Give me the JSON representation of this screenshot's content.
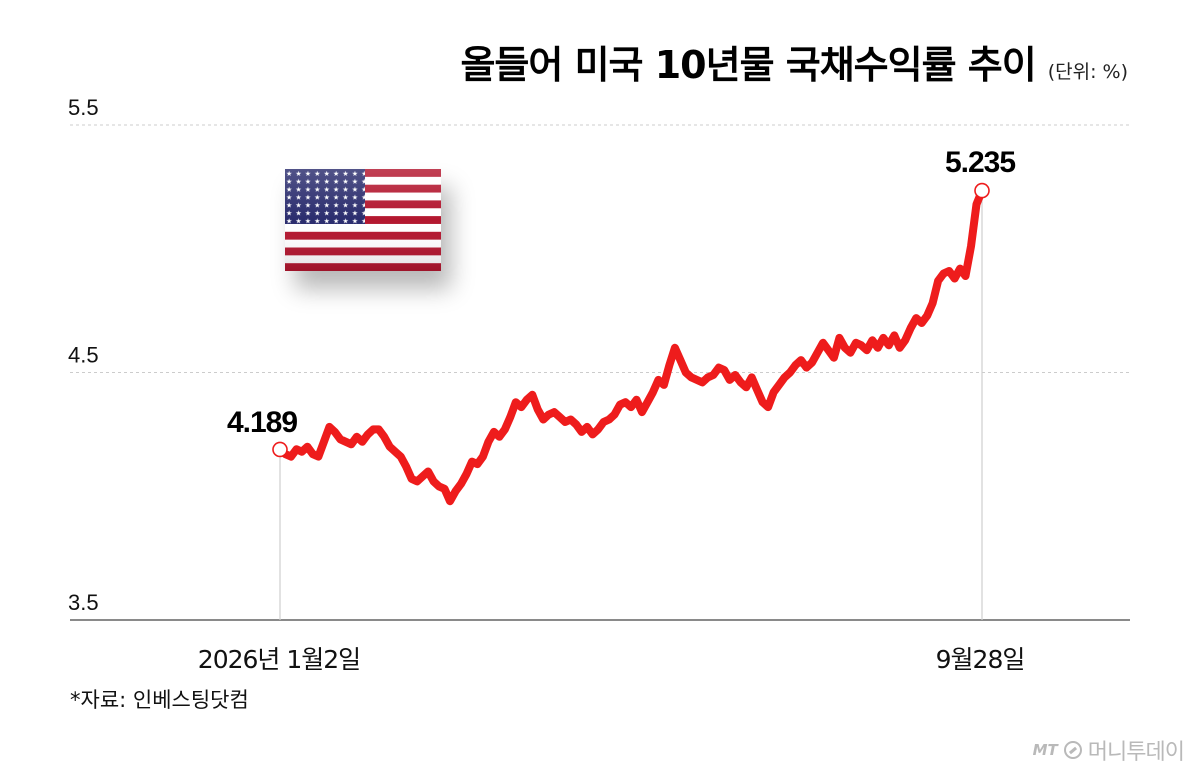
{
  "title": "올들어 미국 10년물 국채수익률 추이",
  "unit": "(단위: %)",
  "source": "*자료: 인베스팅닷컴",
  "brand": {
    "prefix": "MT",
    "name": "머니투데이"
  },
  "flag": {
    "icon": "us-flag-icon"
  },
  "colors": {
    "line": "#ee1c1c",
    "grid": "#cccccc",
    "axis": "#444444",
    "guide": "#cfcfcf",
    "text": "#111111"
  },
  "chart_data": {
    "type": "line",
    "title": "올들어 미국 10년물 국채수익률 추이",
    "unit": "(단위: %)",
    "xlabel": "",
    "ylabel": "",
    "ylim": [
      3.5,
      5.5
    ],
    "yticks": [
      3.5,
      4.5,
      5.5
    ],
    "ytick_labels": [
      "3.5",
      "4.5",
      "5.5"
    ],
    "x_range": [
      "2026-01-02",
      "2026-09-28"
    ],
    "xtick_labels": [
      "2026년 1월2일",
      "9월28일"
    ],
    "grid": "horizontal dashed",
    "legend": "none",
    "annotations": [
      {
        "label": "4.189",
        "value": 4.189,
        "date": "2026-01-02"
      },
      {
        "label": "5.235",
        "value": 5.235,
        "date": "2026-09-28"
      }
    ],
    "series": [
      {
        "values": [
          4.189,
          4.17,
          4.16,
          4.19,
          4.18,
          4.2,
          4.17,
          4.16,
          4.22,
          4.28,
          4.26,
          4.23,
          4.22,
          4.21,
          4.24,
          4.22,
          4.25,
          4.27,
          4.27,
          4.24,
          4.2,
          4.18,
          4.16,
          4.12,
          4.07,
          4.06,
          4.08,
          4.1,
          4.06,
          4.04,
          4.03,
          3.98,
          4.02,
          4.05,
          4.09,
          4.14,
          4.13,
          4.16,
          4.22,
          4.26,
          4.24,
          4.27,
          4.32,
          4.38,
          4.36,
          4.39,
          4.41,
          4.35,
          4.31,
          4.33,
          4.34,
          4.32,
          4.3,
          4.31,
          4.29,
          4.26,
          4.28,
          4.25,
          4.27,
          4.3,
          4.31,
          4.33,
          4.37,
          4.38,
          4.36,
          4.39,
          4.34,
          4.38,
          4.42,
          4.47,
          4.45,
          4.53,
          4.6,
          4.55,
          4.5,
          4.48,
          4.47,
          4.46,
          4.48,
          4.49,
          4.52,
          4.51,
          4.47,
          4.49,
          4.46,
          4.44,
          4.48,
          4.43,
          4.38,
          4.36,
          4.42,
          4.45,
          4.48,
          4.5,
          4.53,
          4.55,
          4.52,
          4.54,
          4.58,
          4.62,
          4.59,
          4.56,
          4.64,
          4.6,
          4.58,
          4.62,
          4.61,
          4.59,
          4.63,
          4.6,
          4.64,
          4.61,
          4.65,
          4.6,
          4.63,
          4.68,
          4.72,
          4.7,
          4.73,
          4.78,
          4.87,
          4.9,
          4.91,
          4.88,
          4.92,
          4.89,
          5.01,
          5.18,
          5.235
        ]
      }
    ]
  }
}
